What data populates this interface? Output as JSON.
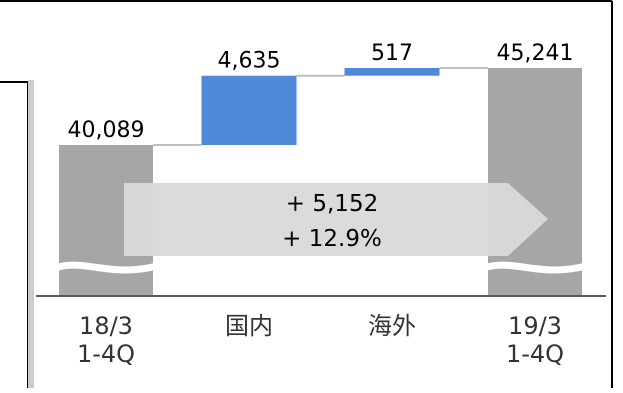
{
  "chart_data": {
    "type": "waterfall",
    "categories": [
      "18/3\n1-4Q",
      "国内",
      "海外",
      "19/3\n1-4Q"
    ],
    "values": [
      40089,
      4635,
      517,
      45241
    ],
    "labels": [
      "40,089",
      "4,635",
      "517",
      "45,241"
    ],
    "bar_kinds": [
      "total",
      "increase",
      "increase",
      "total"
    ],
    "axis_break": true,
    "annotation": {
      "line1": "+ 5,152",
      "line2": "+ 12.9%"
    },
    "colors": {
      "total": "#a6a6a6",
      "increase": "#4f8ad8",
      "arrow": "#d9d9d9",
      "text": "#000000"
    }
  }
}
